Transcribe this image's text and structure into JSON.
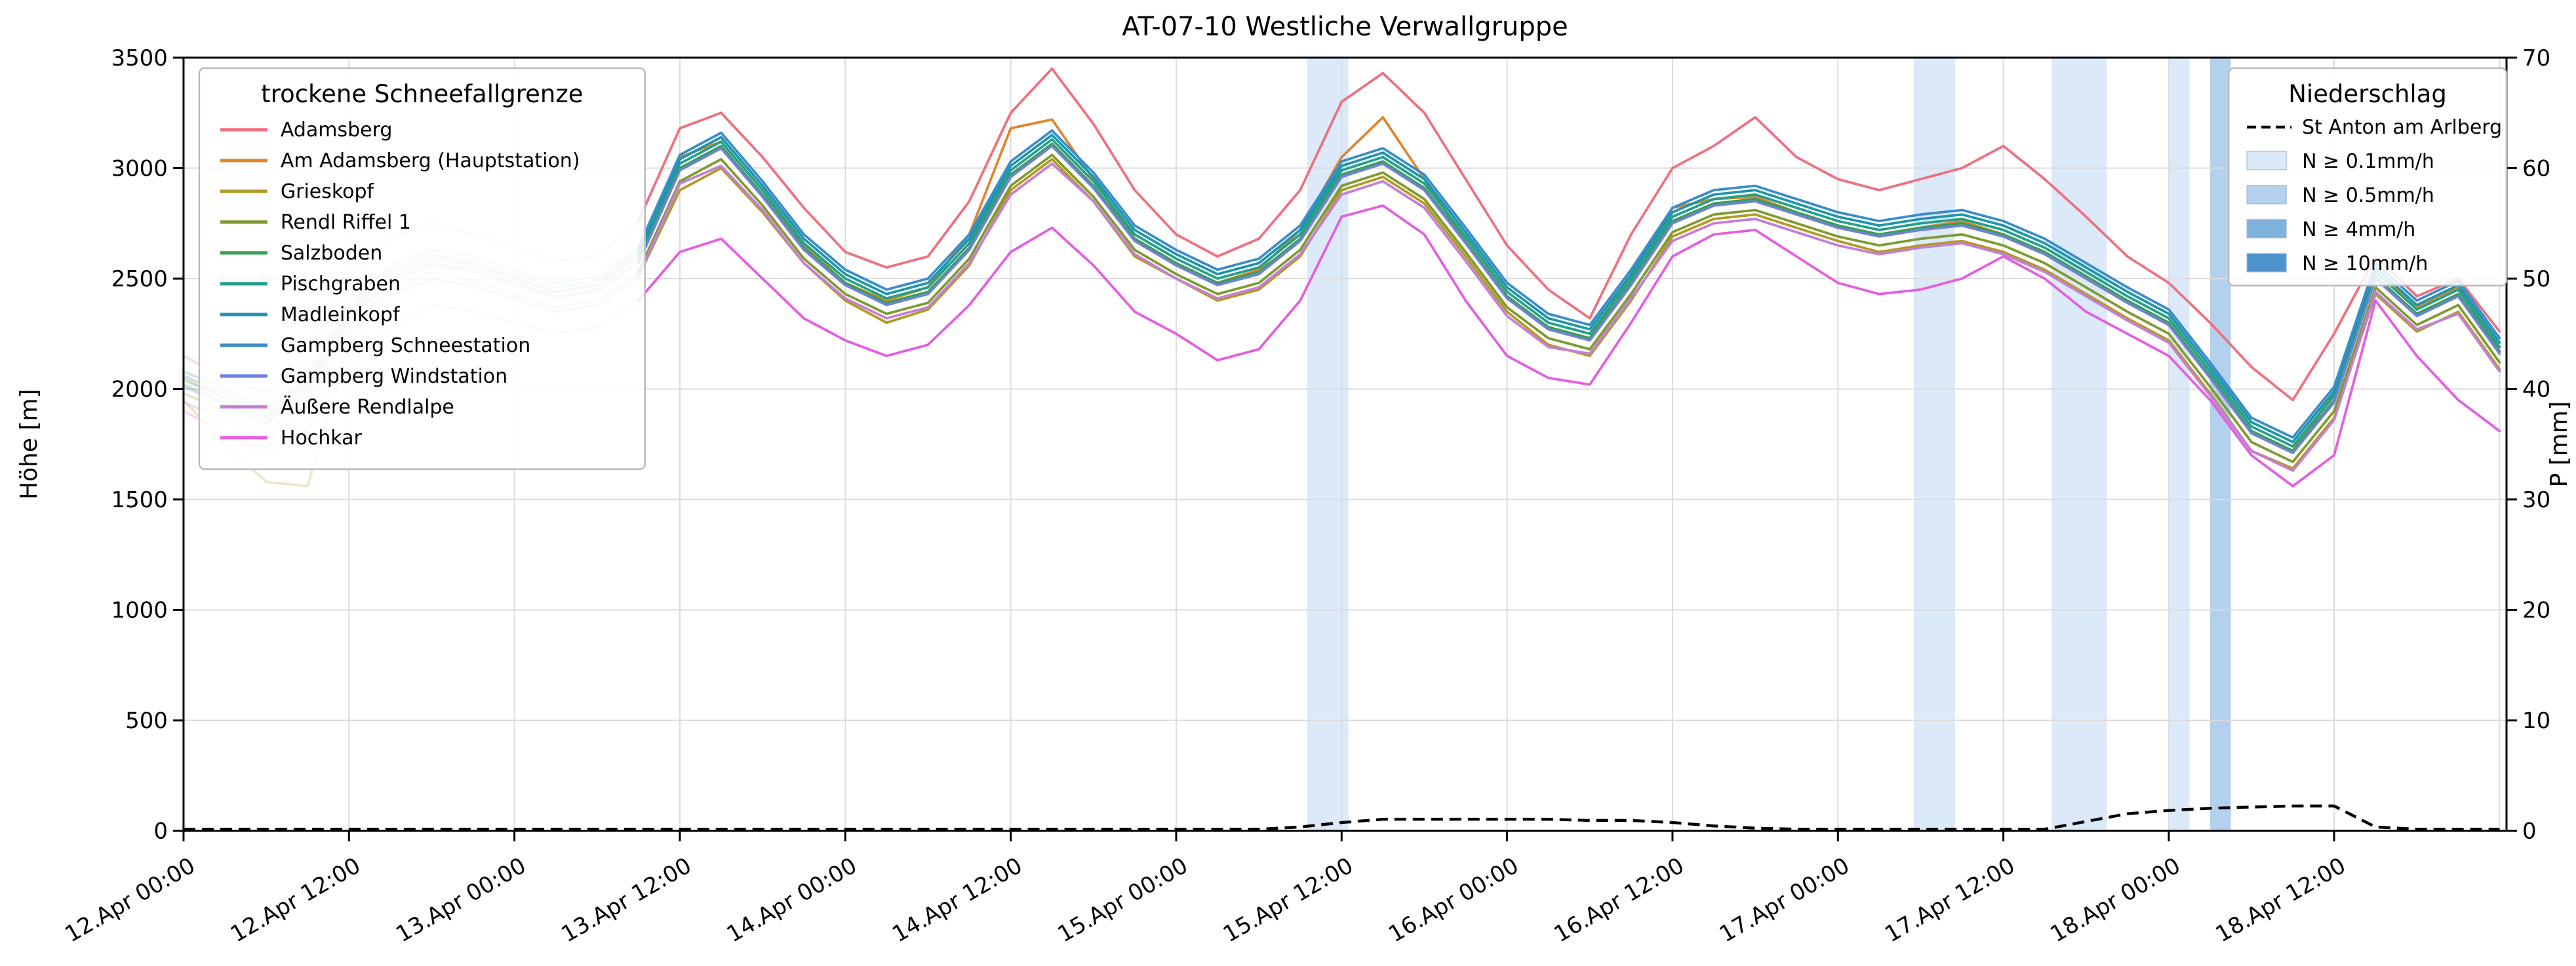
{
  "title": "AT-07-10 Westliche Verwallgruppe",
  "left_axis": {
    "label": "Höhe [m]",
    "min": 0,
    "max": 3500,
    "ticks": [
      0,
      500,
      1000,
      1500,
      2000,
      2500,
      3000,
      3500
    ]
  },
  "right_axis": {
    "label": "P [mm]",
    "min": 0,
    "max": 70,
    "ticks": [
      0,
      10,
      20,
      30,
      40,
      50,
      60,
      70
    ]
  },
  "x_axis": {
    "tick_labels": [
      "12.Apr 00:00",
      "12.Apr 12:00",
      "13.Apr 00:00",
      "13.Apr 12:00",
      "14.Apr 00:00",
      "14.Apr 12:00",
      "15.Apr 00:00",
      "15.Apr 12:00",
      "16.Apr 00:00",
      "16.Apr 12:00",
      "17.Apr 00:00",
      "17.Apr 12:00",
      "18.Apr 00:00",
      "18.Apr 12:00"
    ],
    "tick_hours": [
      0,
      12,
      24,
      36,
      48,
      60,
      72,
      84,
      96,
      108,
      120,
      132,
      144,
      156
    ],
    "grid_hours": [
      0,
      12,
      24,
      36,
      48,
      60,
      72,
      84,
      96,
      108,
      120,
      132,
      144,
      156,
      168
    ]
  },
  "legend_snowline": {
    "title": "trockene Schneefallgrenze"
  },
  "legend_precip": {
    "title": "Niederschlag",
    "station": "St Anton am Arlberg",
    "station_line_style": "dashed",
    "levels": [
      {
        "label": "N ≥ 0.1mm/h",
        "color": "#dbe9f8"
      },
      {
        "label": "N ≥ 0.5mm/h",
        "color": "#b3d1ec"
      },
      {
        "label": "N ≥ 4mm/h",
        "color": "#7fb2dd"
      },
      {
        "label": "N ≥ 10mm/h",
        "color": "#4e93cc"
      }
    ]
  },
  "chart_data": {
    "type": "line",
    "x_unit": "hours since 12.Apr 00:00",
    "x_range_hours": [
      0,
      168.5
    ],
    "faded_before_hour": 33,
    "x_hours": [
      0,
      3,
      6,
      9,
      12,
      15,
      18,
      21,
      24,
      27,
      30,
      33,
      36,
      39,
      42,
      45,
      48,
      51,
      54,
      57,
      60,
      63,
      66,
      69,
      72,
      75,
      78,
      81,
      84,
      87,
      90,
      93,
      96,
      99,
      102,
      105,
      108,
      111,
      114,
      117,
      120,
      123,
      126,
      129,
      132,
      135,
      138,
      141,
      144,
      147,
      150,
      153,
      156,
      159,
      162,
      165,
      168
    ],
    "series": [
      {
        "name": "Adamsberg",
        "color": "#ef7081",
        "values": [
          2150,
          2050,
          1980,
          2150,
          2500,
          2680,
          2750,
          2700,
          2640,
          2580,
          2600,
          2760,
          3180,
          3250,
          3050,
          2820,
          2620,
          2550,
          2600,
          2850,
          3250,
          3450,
          3200,
          2900,
          2700,
          2600,
          2680,
          2900,
          3300,
          3430,
          3250,
          2950,
          2650,
          2450,
          2320,
          2700,
          3000,
          3100,
          3230,
          3050,
          2950,
          2900,
          2950,
          3000,
          3100,
          2950,
          2780,
          2600,
          2480,
          2300,
          2100,
          1950,
          2250,
          2600,
          2420,
          2500,
          2260
        ]
      },
      {
        "name": "Am Adamsberg (Hauptstation)",
        "color": "#e1862c",
        "values": [
          2050,
          1960,
          1870,
          2020,
          2350,
          2530,
          2600,
          2570,
          2500,
          2440,
          2470,
          2620,
          3050,
          3120,
          2900,
          2650,
          2480,
          2400,
          2460,
          2700,
          3180,
          3220,
          2950,
          2680,
          2570,
          2480,
          2540,
          2720,
          3050,
          3230,
          2950,
          2670,
          2420,
          2280,
          2230,
          2520,
          2820,
          2860,
          2870,
          2800,
          2740,
          2700,
          2730,
          2760,
          2700,
          2620,
          2500,
          2390,
          2290,
          2060,
          1810,
          1720,
          1980,
          2550,
          2370,
          2460,
          2170
        ]
      },
      {
        "name": "Grieskopf",
        "color": "#b29a24",
        "values": [
          1950,
          1750,
          1580,
          1560,
          2200,
          2420,
          2500,
          2470,
          2410,
          2350,
          2380,
          2510,
          2900,
          3000,
          2800,
          2570,
          2400,
          2300,
          2360,
          2560,
          2900,
          3040,
          2850,
          2600,
          2500,
          2400,
          2450,
          2600,
          2900,
          2960,
          2840,
          2600,
          2350,
          2200,
          2150,
          2400,
          2690,
          2770,
          2790,
          2730,
          2670,
          2620,
          2650,
          2670,
          2620,
          2540,
          2430,
          2320,
          2220,
          1980,
          1720,
          1640,
          1870,
          2430,
          2260,
          2350,
          2090
        ]
      },
      {
        "name": "Rendl Riffel 1",
        "color": "#7e9b30",
        "values": [
          1980,
          1900,
          1800,
          1950,
          2280,
          2450,
          2530,
          2490,
          2430,
          2370,
          2400,
          2530,
          2940,
          3040,
          2830,
          2590,
          2430,
          2340,
          2390,
          2590,
          2920,
          3060,
          2870,
          2630,
          2520,
          2430,
          2480,
          2630,
          2920,
          2980,
          2860,
          2620,
          2370,
          2230,
          2180,
          2430,
          2710,
          2790,
          2810,
          2750,
          2690,
          2650,
          2680,
          2700,
          2650,
          2570,
          2460,
          2350,
          2250,
          2010,
          1760,
          1670,
          1900,
          2460,
          2290,
          2380,
          2120
        ]
      },
      {
        "name": "Salzboden",
        "color": "#37a055",
        "values": [
          2020,
          1940,
          1850,
          2000,
          2320,
          2500,
          2570,
          2540,
          2480,
          2420,
          2450,
          2580,
          3000,
          3100,
          2880,
          2640,
          2480,
          2390,
          2440,
          2640,
          2970,
          3110,
          2920,
          2680,
          2570,
          2480,
          2530,
          2680,
          2970,
          3030,
          2910,
          2670,
          2420,
          2280,
          2230,
          2480,
          2760,
          2840,
          2860,
          2800,
          2740,
          2700,
          2730,
          2750,
          2700,
          2620,
          2510,
          2400,
          2300,
          2060,
          1810,
          1720,
          1950,
          2510,
          2340,
          2430,
          2170
        ]
      },
      {
        "name": "Pischgraben",
        "color": "#23a08b",
        "values": [
          2040,
          1960,
          1870,
          2020,
          2340,
          2520,
          2590,
          2560,
          2500,
          2440,
          2470,
          2600,
          3020,
          3120,
          2900,
          2660,
          2500,
          2410,
          2460,
          2660,
          2990,
          3130,
          2940,
          2700,
          2590,
          2500,
          2550,
          2700,
          2990,
          3050,
          2930,
          2690,
          2440,
          2300,
          2250,
          2500,
          2780,
          2860,
          2880,
          2820,
          2760,
          2720,
          2750,
          2770,
          2720,
          2640,
          2530,
          2420,
          2320,
          2080,
          1830,
          1740,
          1970,
          2530,
          2360,
          2450,
          2190
        ]
      },
      {
        "name": "Madleinkopf",
        "color": "#1e95ab",
        "values": [
          2060,
          1980,
          1890,
          2040,
          2360,
          2540,
          2610,
          2580,
          2520,
          2460,
          2490,
          2620,
          3040,
          3140,
          2920,
          2680,
          2520,
          2430,
          2480,
          2680,
          3010,
          3150,
          2960,
          2720,
          2610,
          2520,
          2570,
          2720,
          3010,
          3070,
          2950,
          2710,
          2460,
          2320,
          2270,
          2520,
          2800,
          2880,
          2900,
          2840,
          2780,
          2740,
          2770,
          2790,
          2740,
          2660,
          2550,
          2440,
          2340,
          2100,
          1850,
          1760,
          1990,
          2550,
          2380,
          2470,
          2210
        ]
      },
      {
        "name": "Gampberg Schneestation",
        "color": "#3a8dc9",
        "values": [
          2080,
          2000,
          1910,
          2060,
          2380,
          2560,
          2630,
          2600,
          2540,
          2480,
          2510,
          2640,
          3060,
          3160,
          2940,
          2700,
          2540,
          2450,
          2500,
          2700,
          3030,
          3170,
          2980,
          2740,
          2630,
          2540,
          2590,
          2740,
          3030,
          3090,
          2970,
          2730,
          2480,
          2340,
          2290,
          2540,
          2820,
          2900,
          2920,
          2860,
          2800,
          2760,
          2790,
          2810,
          2760,
          2680,
          2570,
          2460,
          2360,
          2120,
          1870,
          1780,
          2010,
          2570,
          2400,
          2490,
          2230
        ]
      },
      {
        "name": "Gampberg Windstation",
        "color": "#7081d8",
        "values": [
          2010,
          1930,
          1840,
          1990,
          2310,
          2490,
          2560,
          2530,
          2470,
          2410,
          2440,
          2570,
          2990,
          3090,
          2870,
          2630,
          2470,
          2380,
          2430,
          2630,
          2960,
          3100,
          2910,
          2670,
          2560,
          2470,
          2520,
          2670,
          2960,
          3020,
          2900,
          2660,
          2410,
          2270,
          2220,
          2470,
          2750,
          2830,
          2850,
          2790,
          2730,
          2690,
          2720,
          2740,
          2690,
          2610,
          2500,
          2390,
          2290,
          2050,
          1800,
          1710,
          1940,
          2500,
          2330,
          2420,
          2160
        ]
      },
      {
        "name": "Äußere Rendlalpe",
        "color": "#c47fd6",
        "values": [
          1940,
          1860,
          1770,
          1920,
          2250,
          2430,
          2500,
          2460,
          2410,
          2350,
          2380,
          2510,
          2930,
          3010,
          2810,
          2570,
          2410,
          2320,
          2370,
          2570,
          2880,
          3020,
          2850,
          2610,
          2500,
          2410,
          2460,
          2610,
          2880,
          2940,
          2820,
          2580,
          2330,
          2190,
          2160,
          2410,
          2670,
          2750,
          2770,
          2710,
          2650,
          2610,
          2640,
          2660,
          2610,
          2530,
          2420,
          2310,
          2210,
          1970,
          1720,
          1630,
          1860,
          2440,
          2270,
          2340,
          2080
        ]
      },
      {
        "name": "Hochkar",
        "color": "#e35fe0",
        "values": [
          1900,
          1800,
          1700,
          1820,
          2100,
          2280,
          2380,
          2350,
          2300,
          2250,
          2280,
          2400,
          2620,
          2680,
          2500,
          2320,
          2220,
          2150,
          2200,
          2380,
          2620,
          2730,
          2560,
          2350,
          2250,
          2130,
          2180,
          2400,
          2780,
          2830,
          2700,
          2400,
          2150,
          2050,
          2020,
          2300,
          2600,
          2700,
          2720,
          2600,
          2480,
          2430,
          2450,
          2500,
          2600,
          2500,
          2350,
          2250,
          2150,
          1950,
          1700,
          1560,
          1700,
          2400,
          2150,
          1950,
          1810
        ]
      }
    ],
    "precip_line": {
      "name": "St Anton am Arlberg",
      "color": "#000000",
      "style": "dashed",
      "axis": "right",
      "values_mm": [
        0,
        0,
        0,
        0,
        0,
        0,
        0,
        0,
        0,
        0,
        0,
        0,
        0,
        0,
        0,
        0,
        0,
        0,
        0,
        0,
        0,
        0,
        0,
        0,
        0,
        0,
        0,
        0.2,
        0.6,
        0.9,
        0.9,
        0.9,
        0.9,
        0.9,
        0.8,
        0.8,
        0.6,
        0.3,
        0.1,
        0,
        0,
        0,
        0,
        0,
        0,
        0,
        0.7,
        1.4,
        1.7,
        1.9,
        2.0,
        2.1,
        2.1,
        0.2,
        0,
        0,
        0
      ]
    },
    "precip_bands": [
      {
        "start_hour": 81.5,
        "end_hour": 84.5,
        "level_index": 0
      },
      {
        "start_hour": 125.5,
        "end_hour": 128.5,
        "level_index": 0
      },
      {
        "start_hour": 135.5,
        "end_hour": 139.5,
        "level_index": 0
      },
      {
        "start_hour": 144,
        "end_hour": 145.5,
        "level_index": 0
      },
      {
        "start_hour": 147,
        "end_hour": 148.5,
        "level_index": 1
      }
    ]
  }
}
